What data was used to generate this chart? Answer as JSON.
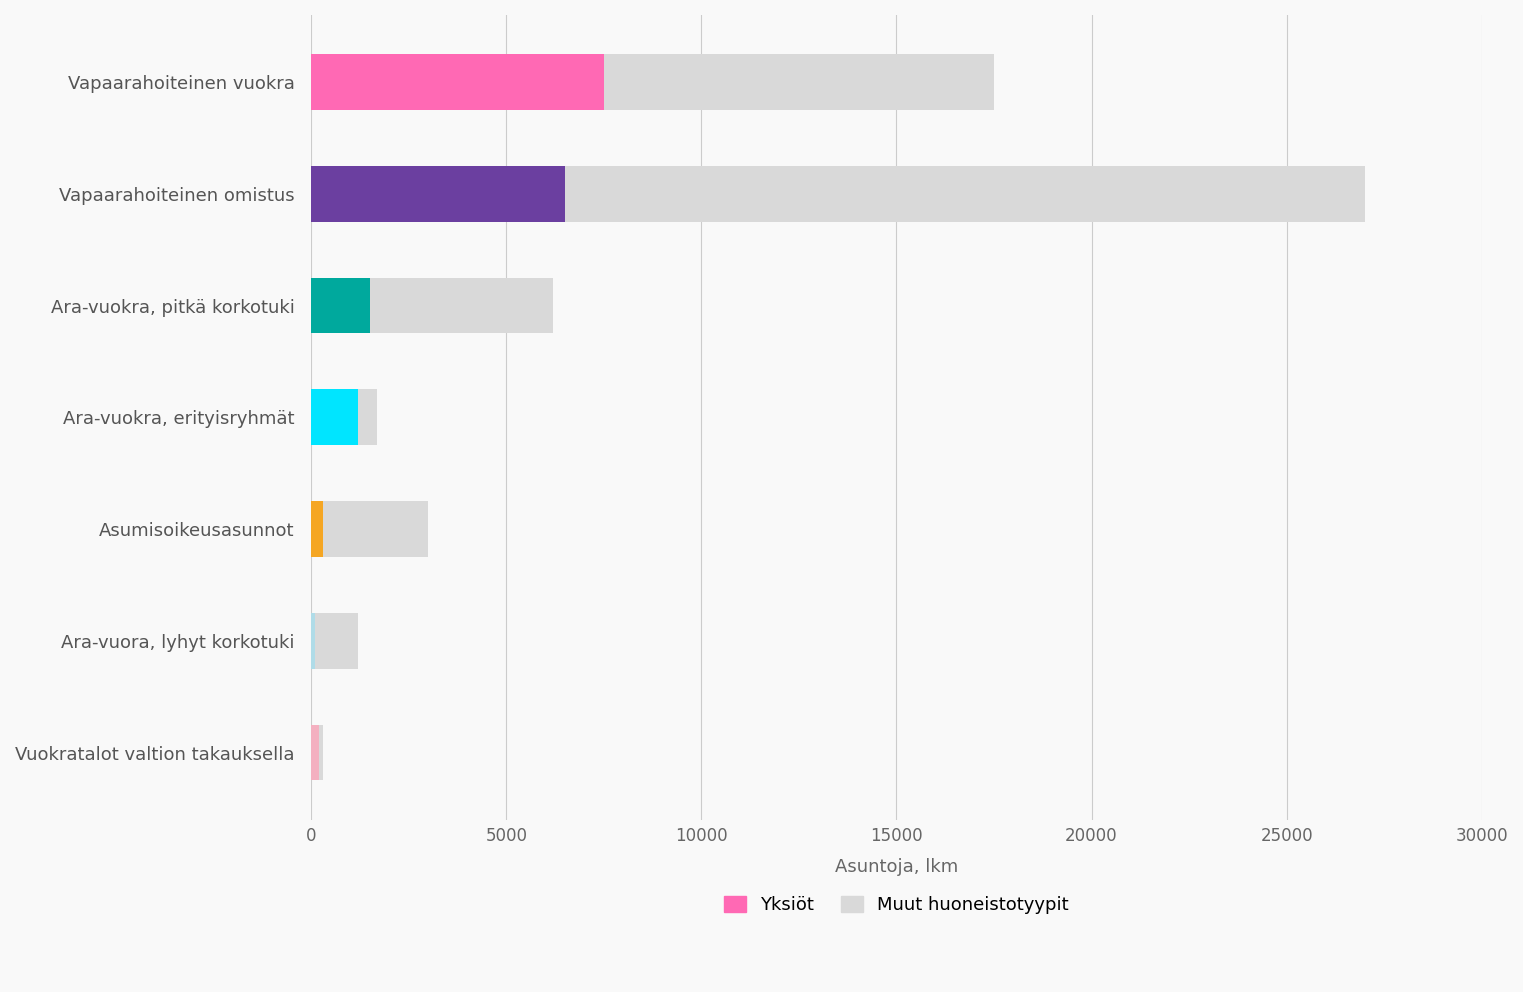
{
  "categories": [
    "Vuokratalot valtion takauksella",
    "Ara-vuora, lyhyt korkotuki",
    "Asumisoikeusasunnot",
    "Ara-vuokra, erityisryhmät",
    "Ara-vuokra, pitkä korkotuki",
    "Vapaarahoiteinen omistus",
    "Vapaarahoiteinen vuokra"
  ],
  "yksiot": [
    200,
    100,
    300,
    1200,
    1500,
    6500,
    7500
  ],
  "total": [
    300,
    1200,
    3000,
    1700,
    6200,
    27000,
    17500
  ],
  "yksiot_colors": [
    "#f4b0c0",
    "#b0dce8",
    "#f5a623",
    "#00e5ff",
    "#00a99d",
    "#6b3fa0",
    "#ff69b4"
  ],
  "muut_color": "#d9d9d9",
  "xlabel": "Asuntoja, lkm",
  "xlim": [
    0,
    30000
  ],
  "xticks": [
    0,
    5000,
    10000,
    15000,
    20000,
    25000,
    30000
  ],
  "legend_yksiot_label": "Yksiöt",
  "legend_muut_label": "Muut huoneistotyypit",
  "legend_yksiot_color": "#ff69b4",
  "background_color": "#f9f9f9",
  "bar_height": 0.5,
  "figsize": [
    15.23,
    9.92
  ],
  "dpi": 100
}
